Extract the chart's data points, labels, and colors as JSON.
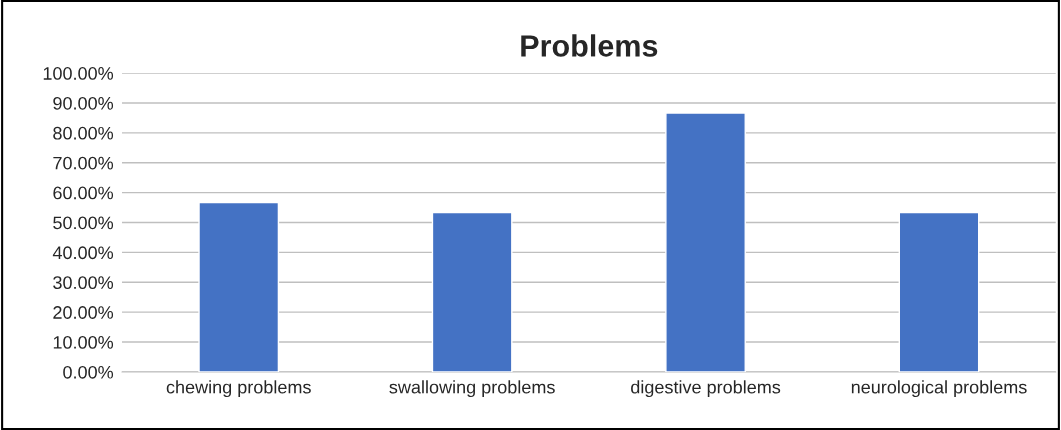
{
  "chart_data": {
    "type": "bar",
    "title": "Problems",
    "categories": [
      "chewing problems",
      "swallowing problems",
      "digestive problems",
      "neurological problems"
    ],
    "values": [
      56.67,
      53.33,
      86.67,
      53.33
    ],
    "color": "#4472c4",
    "ylim": [
      0,
      100
    ],
    "yticks": [
      {
        "value": 0,
        "label": "0.00%"
      },
      {
        "value": 10,
        "label": "10.00%"
      },
      {
        "value": 20,
        "label": "20.00%"
      },
      {
        "value": 30,
        "label": "30.00%"
      },
      {
        "value": 40,
        "label": "40.00%"
      },
      {
        "value": 50,
        "label": "50.00%"
      },
      {
        "value": 60,
        "label": "60.00%"
      },
      {
        "value": 70,
        "label": "70.00%"
      },
      {
        "value": 80,
        "label": "80.00%"
      },
      {
        "value": 90,
        "label": "90.00%"
      },
      {
        "value": 100,
        "label": "100.00%"
      }
    ],
    "grid": "y"
  }
}
